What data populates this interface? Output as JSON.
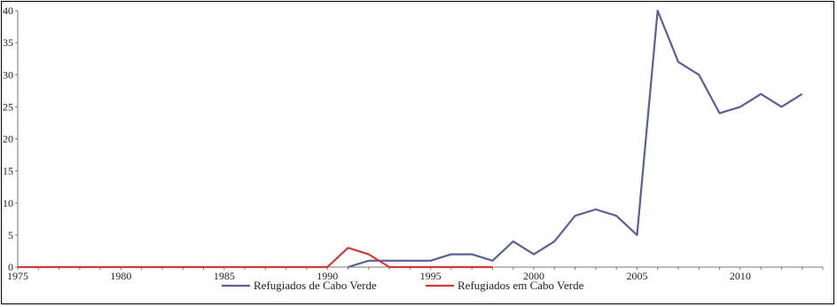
{
  "chart_data": {
    "type": "line",
    "title": "",
    "xlabel": "",
    "ylabel": "",
    "x": [
      1975,
      1976,
      1977,
      1978,
      1979,
      1980,
      1981,
      1982,
      1983,
      1984,
      1985,
      1986,
      1987,
      1988,
      1989,
      1990,
      1991,
      1992,
      1993,
      1994,
      1995,
      1996,
      1997,
      1998,
      1999,
      2000,
      2001,
      2002,
      2003,
      2004,
      2005,
      2006,
      2007,
      2008,
      2009,
      2010,
      2011,
      2012,
      2013
    ],
    "xlim": [
      1975,
      2014
    ],
    "ylim": [
      0,
      40
    ],
    "x_ticks": [
      "1975",
      "1980",
      "1985",
      "1990",
      "1995",
      "2000",
      "2005",
      "2010"
    ],
    "y_ticks": [
      "0",
      "5",
      "10",
      "15",
      "20",
      "25",
      "30",
      "35",
      "40"
    ],
    "grid": false,
    "legend_position": "bottom",
    "series": [
      {
        "name": "Refugiados de Cabo Verde",
        "color": "#5b5f97",
        "x": [
          1991,
          1992,
          1993,
          1994,
          1995,
          1996,
          1997,
          1998,
          1999,
          2000,
          2001,
          2002,
          2003,
          2004,
          2005,
          2006,
          2007,
          2008,
          2009,
          2010,
          2011,
          2012,
          2013
        ],
        "values": [
          0,
          1,
          1,
          1,
          1,
          2,
          2,
          1,
          4,
          2,
          4,
          8,
          9,
          8,
          5,
          40,
          32,
          30,
          24,
          25,
          27,
          25,
          27
        ]
      },
      {
        "name": "Refugiados em Cabo Verde",
        "color": "#d23a3a",
        "x": [
          1975,
          1976,
          1977,
          1978,
          1979,
          1980,
          1981,
          1982,
          1983,
          1984,
          1985,
          1986,
          1987,
          1988,
          1989,
          1990,
          1991,
          1992,
          1993,
          1994,
          1995,
          1996,
          1997,
          1998
        ],
        "values": [
          0,
          0,
          0,
          0,
          0,
          0,
          0,
          0,
          0,
          0,
          0,
          0,
          0,
          0,
          0,
          0,
          3,
          2,
          0,
          0,
          0,
          0,
          0,
          0
        ]
      }
    ]
  }
}
